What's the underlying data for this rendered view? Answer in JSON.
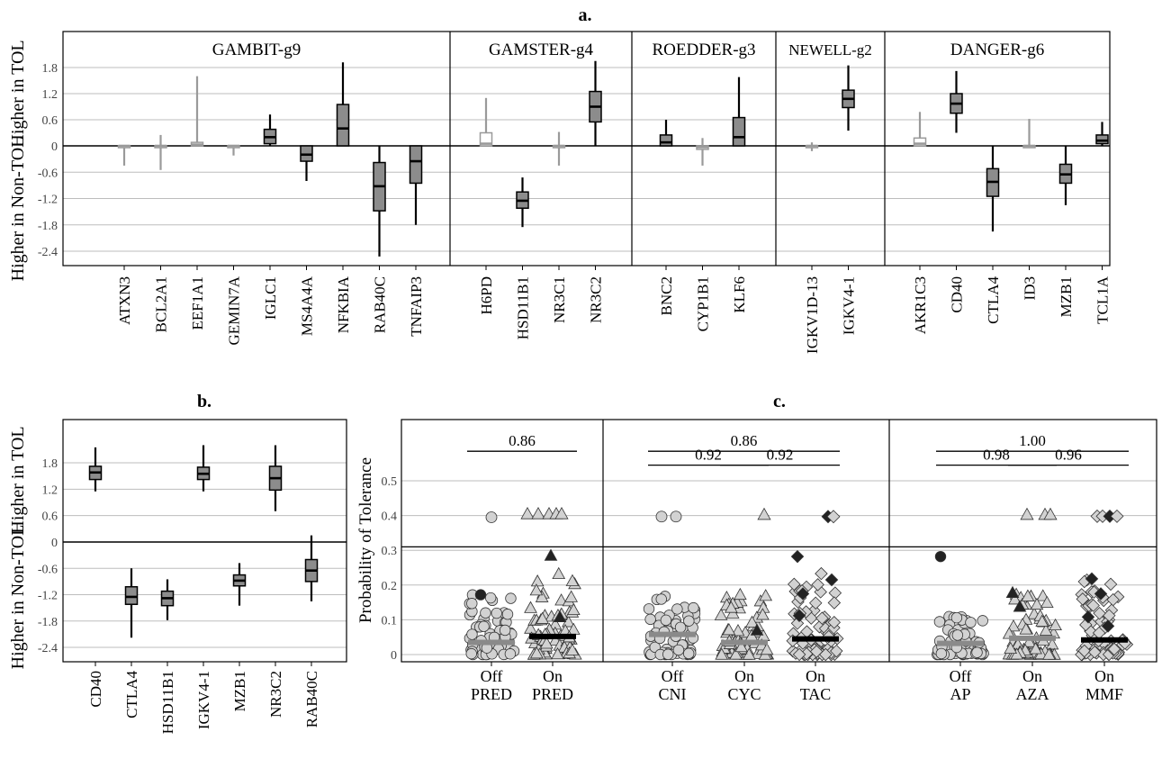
{
  "colors": {
    "significant": "#000000",
    "not_significant": "#9a9a9a",
    "box_fill": "#8c8c8c",
    "grid": "#bdbdbd",
    "light_point": "#d2d2d2",
    "gray_mean": "#8a8a8a"
  },
  "chart_data": [
    {
      "id": "a",
      "type": "boxplot",
      "title": "a.",
      "ylabel_top": "Higher in TOL",
      "ylabel_bottom": "Higher in Non-TOL",
      "yticks": [
        "1.8",
        "1.2",
        "0.6",
        "0",
        "-0.6",
        "-1.2",
        "-1.8",
        "-2.4"
      ],
      "ytick_values": [
        1.8,
        1.2,
        0.6,
        0,
        -0.6,
        -1.2,
        -1.8,
        -2.4
      ],
      "ylim": [
        -2.75,
        2.55
      ],
      "grid": true,
      "panels": [
        {
          "label": "GAMBIT-g9",
          "genes": [
            {
              "gene": "ATXN3",
              "significant": false,
              "q1": 0.0,
              "median": 0.0,
              "q3": 0.0,
              "lo": -0.45,
              "hi": 0.0
            },
            {
              "gene": "BCL2A1",
              "significant": false,
              "q1": 0.0,
              "median": 0.0,
              "q3": 0.0,
              "lo": -0.55,
              "hi": 0.25
            },
            {
              "gene": "EEF1A1",
              "significant": false,
              "q1": 0.0,
              "median": 0.03,
              "q3": 0.08,
              "lo": 0.0,
              "hi": 1.6
            },
            {
              "gene": "GEMIN7A",
              "significant": false,
              "q1": 0.0,
              "median": 0.0,
              "q3": 0.0,
              "lo": -0.22,
              "hi": 0.0
            },
            {
              "gene": "IGLC1",
              "significant": true,
              "q1": 0.05,
              "median": 0.2,
              "q3": 0.38,
              "lo": 0.0,
              "hi": 0.72
            },
            {
              "gene": "MS4A4A",
              "significant": true,
              "q1": -0.35,
              "median": -0.2,
              "q3": 0.0,
              "lo": -0.8,
              "hi": 0.0
            },
            {
              "gene": "NFKBIA",
              "significant": true,
              "q1": 0.0,
              "median": 0.4,
              "q3": 0.95,
              "lo": 0.0,
              "hi": 1.92
            },
            {
              "gene": "RAB40C",
              "significant": true,
              "q1": -1.48,
              "median": -0.92,
              "q3": -0.38,
              "lo": -2.52,
              "hi": 0.0
            },
            {
              "gene": "TNFAIP3",
              "significant": true,
              "q1": -0.85,
              "median": -0.35,
              "q3": 0.0,
              "lo": -1.8,
              "hi": 0.0
            }
          ]
        },
        {
          "label": "GAMSTER-g4",
          "genes": [
            {
              "gene": "H6PD",
              "significant": false,
              "q1": 0.0,
              "median": 0.05,
              "q3": 0.3,
              "lo": 0.0,
              "hi": 1.1
            },
            {
              "gene": "HSD11B1",
              "significant": true,
              "q1": -1.42,
              "median": -1.25,
              "q3": -1.05,
              "lo": -1.85,
              "hi": -0.72
            },
            {
              "gene": "NR3C1",
              "significant": false,
              "q1": 0.0,
              "median": 0.0,
              "q3": 0.0,
              "lo": -0.45,
              "hi": 0.32
            },
            {
              "gene": "NR3C2",
              "significant": true,
              "q1": 0.55,
              "median": 0.9,
              "q3": 1.25,
              "lo": 0.0,
              "hi": 1.95
            }
          ]
        },
        {
          "label": "ROEDDER-g3",
          "genes": [
            {
              "gene": "BNC2",
              "significant": true,
              "q1": 0.0,
              "median": 0.08,
              "q3": 0.25,
              "lo": 0.0,
              "hi": 0.6
            },
            {
              "gene": "CYP1B1",
              "significant": false,
              "q1": -0.08,
              "median": -0.03,
              "q3": 0.0,
              "lo": -0.45,
              "hi": 0.18
            },
            {
              "gene": "KLF6",
              "significant": true,
              "q1": 0.0,
              "median": 0.2,
              "q3": 0.65,
              "lo": 0.0,
              "hi": 1.58
            }
          ]
        },
        {
          "label": "NEWELL-g2",
          "genes": [
            {
              "gene": "IGKV1D-13",
              "significant": false,
              "q1": 0.0,
              "median": 0.0,
              "q3": 0.0,
              "lo": -0.12,
              "hi": 0.08
            },
            {
              "gene": "IGKV4-1",
              "significant": true,
              "q1": 0.88,
              "median": 1.08,
              "q3": 1.28,
              "lo": 0.35,
              "hi": 1.85
            }
          ]
        },
        {
          "label": "DANGER-g6",
          "genes": [
            {
              "gene": "AKR1C3",
              "significant": false,
              "q1": 0.0,
              "median": 0.05,
              "q3": 0.18,
              "lo": 0.0,
              "hi": 0.78
            },
            {
              "gene": "CD40",
              "significant": true,
              "q1": 0.75,
              "median": 0.97,
              "q3": 1.2,
              "lo": 0.3,
              "hi": 1.72
            },
            {
              "gene": "CTLA4",
              "significant": true,
              "q1": -1.15,
              "median": -0.82,
              "q3": -0.52,
              "lo": -1.95,
              "hi": 0.0
            },
            {
              "gene": "ID3",
              "significant": false,
              "q1": 0.0,
              "median": 0.0,
              "q3": 0.0,
              "lo": 0.0,
              "hi": 0.62
            },
            {
              "gene": "MZB1",
              "significant": true,
              "q1": -0.85,
              "median": -0.65,
              "q3": -0.42,
              "lo": -1.35,
              "hi": 0.0
            },
            {
              "gene": "TCL1A",
              "significant": true,
              "q1": 0.05,
              "median": 0.12,
              "q3": 0.25,
              "lo": 0.0,
              "hi": 0.55
            }
          ]
        }
      ]
    },
    {
      "id": "b",
      "type": "boxplot",
      "title": "b.",
      "ylabel_top": "Higher in TOL",
      "ylabel_bottom": "Higher in Non-TOL",
      "yticks": [
        "1.8",
        "1.2",
        "0.6",
        "0",
        "-0.6",
        "-1.2",
        "-1.8",
        "-2.4"
      ],
      "ytick_values": [
        1.8,
        1.2,
        0.6,
        0,
        -0.6,
        -1.2,
        -1.8,
        -2.4
      ],
      "ylim": [
        -2.85,
        2.55
      ],
      "grid": true,
      "genes": [
        {
          "gene": "CD40",
          "significant": true,
          "q1": 1.42,
          "median": 1.58,
          "q3": 1.72,
          "lo": 1.15,
          "hi": 2.15
        },
        {
          "gene": "CTLA4",
          "significant": true,
          "q1": -1.42,
          "median": -1.25,
          "q3": -1.02,
          "lo": -2.18,
          "hi": -0.6
        },
        {
          "gene": "HSD11B1",
          "significant": true,
          "q1": -1.45,
          "median": -1.28,
          "q3": -1.12,
          "lo": -1.78,
          "hi": -0.85
        },
        {
          "gene": "IGKV4-1",
          "significant": true,
          "q1": 1.42,
          "median": 1.55,
          "q3": 1.7,
          "lo": 1.15,
          "hi": 2.2
        },
        {
          "gene": "MZB1",
          "significant": true,
          "q1": -1.0,
          "median": -0.88,
          "q3": -0.75,
          "lo": -1.45,
          "hi": -0.48
        },
        {
          "gene": "NR3C2",
          "significant": true,
          "q1": 1.18,
          "median": 1.45,
          "q3": 1.72,
          "lo": 0.7,
          "hi": 2.2
        },
        {
          "gene": "RAB40C",
          "significant": true,
          "q1": -0.9,
          "median": -0.65,
          "q3": -0.4,
          "lo": -1.35,
          "hi": 0.15
        }
      ]
    },
    {
      "id": "c",
      "type": "scatter",
      "title": "c.",
      "ylabel": "Probability of Tolerance",
      "yticks": [
        "0",
        "0.1",
        "0.2",
        "0.3",
        "0.4",
        "0.5"
      ],
      "ytick_values": [
        0,
        0.1,
        0.2,
        0.3,
        0.4,
        0.5
      ],
      "ylim": [
        -0.015,
        0.61
      ],
      "grid": true,
      "break_line": 0.31,
      "panels": [
        {
          "groups": [
            {
              "line1": "Off",
              "line2": "PRED",
              "marker": "circle",
              "mean": 0.035,
              "mean_color": "gray",
              "outliers": [
                {
                  "y": 0.395,
                  "fill": "light",
                  "dx": 0
                }
              ],
              "highlights": [
                {
                  "y": 0.172,
                  "fill": "dark",
                  "dx": -12
                }
              ],
              "maxy": 0.175,
              "seed": 11
            },
            {
              "line1": "On",
              "line2": "PRED",
              "marker": "triangle",
              "mean": 0.052,
              "mean_color": "black",
              "outliers": [
                {
                  "y": 0.405,
                  "fill": "light",
                  "dx": -28
                },
                {
                  "y": 0.405,
                  "fill": "light",
                  "dx": -16
                },
                {
                  "y": 0.405,
                  "fill": "light",
                  "dx": -4
                },
                {
                  "y": 0.405,
                  "fill": "light",
                  "dx": 4
                },
                {
                  "y": 0.405,
                  "fill": "light",
                  "dx": 10
                }
              ],
              "highlights": [
                {
                  "y": 0.285,
                  "fill": "dark",
                  "dx": -2
                },
                {
                  "y": 0.108,
                  "fill": "dark",
                  "dx": 8
                }
              ],
              "maxy": 0.235,
              "seed": 23
            }
          ],
          "brackets": [
            {
              "from": 0,
              "to": 1,
              "label": "0.86",
              "y": 0.585
            }
          ]
        },
        {
          "groups": [
            {
              "line1": "Off",
              "line2": "CNI",
              "marker": "circle",
              "mean": 0.058,
              "mean_color": "gray",
              "outliers": [
                {
                  "y": 0.397,
                  "fill": "light",
                  "dx": -12
                },
                {
                  "y": 0.397,
                  "fill": "light",
                  "dx": 4
                }
              ],
              "highlights": [],
              "maxy": 0.18,
              "seed": 31
            },
            {
              "line1": "On",
              "line2": "CYC",
              "marker": "triangle",
              "mean": 0.035,
              "mean_color": "gray",
              "outliers": [
                {
                  "y": 0.403,
                  "fill": "light",
                  "dx": 22
                }
              ],
              "highlights": [
                {
                  "y": 0.07,
                  "fill": "dark",
                  "dx": 14
                }
              ],
              "maxy": 0.18,
              "seed": 47
            },
            {
              "line1": "On",
              "line2": "TAC",
              "marker": "diamond",
              "mean": 0.045,
              "mean_color": "black",
              "outliers": [
                {
                  "y": 0.397,
                  "fill": "dark",
                  "dx": 14
                },
                {
                  "y": 0.397,
                  "fill": "light",
                  "dx": 20
                }
              ],
              "highlights": [
                {
                  "y": 0.282,
                  "fill": "dark",
                  "dx": -20
                },
                {
                  "y": 0.215,
                  "fill": "dark",
                  "dx": 18
                },
                {
                  "y": 0.175,
                  "fill": "dark",
                  "dx": -14
                },
                {
                  "y": 0.112,
                  "fill": "dark",
                  "dx": -18
                }
              ],
              "maxy": 0.24,
              "seed": 59
            }
          ],
          "brackets": [
            {
              "from": 0,
              "to": 2,
              "label": "0.86",
              "y": 0.585
            },
            {
              "from": 0,
              "to": 1,
              "label": "0.92",
              "y": 0.545
            },
            {
              "from": 1,
              "to": 2,
              "label": "0.92",
              "y": 0.545
            }
          ]
        },
        {
          "groups": [
            {
              "line1": "Off",
              "line2": "AP",
              "marker": "circle",
              "mean": 0.032,
              "mean_color": "gray",
              "outliers": [],
              "highlights": [
                {
                  "y": 0.282,
                  "fill": "dark",
                  "dx": -22
                }
              ],
              "maxy": 0.11,
              "seed": 71
            },
            {
              "line1": "On",
              "line2": "AZA",
              "marker": "triangle",
              "mean": 0.047,
              "mean_color": "gray",
              "outliers": [
                {
                  "y": 0.403,
                  "fill": "light",
                  "dx": -6
                },
                {
                  "y": 0.403,
                  "fill": "light",
                  "dx": 14
                },
                {
                  "y": 0.403,
                  "fill": "light",
                  "dx": 20
                }
              ],
              "highlights": [
                {
                  "y": 0.178,
                  "fill": "dark",
                  "dx": -22
                },
                {
                  "y": 0.138,
                  "fill": "dark",
                  "dx": -14
                }
              ],
              "maxy": 0.18,
              "seed": 83
            },
            {
              "line1": "On",
              "line2": "MMF",
              "marker": "diamond",
              "mean": 0.042,
              "mean_color": "black",
              "outliers": [
                {
                  "y": 0.398,
                  "fill": "light",
                  "dx": -8
                },
                {
                  "y": 0.398,
                  "fill": "light",
                  "dx": -2
                },
                {
                  "y": 0.398,
                  "fill": "dark",
                  "dx": 6
                },
                {
                  "y": 0.398,
                  "fill": "light",
                  "dx": 14
                }
              ],
              "highlights": [
                {
                  "y": 0.218,
                  "fill": "dark",
                  "dx": -14
                },
                {
                  "y": 0.175,
                  "fill": "dark",
                  "dx": -4
                },
                {
                  "y": 0.108,
                  "fill": "dark",
                  "dx": -18
                },
                {
                  "y": 0.082,
                  "fill": "dark",
                  "dx": 4
                }
              ],
              "maxy": 0.225,
              "seed": 97
            }
          ],
          "brackets": [
            {
              "from": 0,
              "to": 2,
              "label": "1.00",
              "y": 0.585
            },
            {
              "from": 0,
              "to": 1,
              "label": "0.98",
              "y": 0.545
            },
            {
              "from": 1,
              "to": 2,
              "label": "0.96",
              "y": 0.545
            }
          ]
        }
      ]
    }
  ]
}
